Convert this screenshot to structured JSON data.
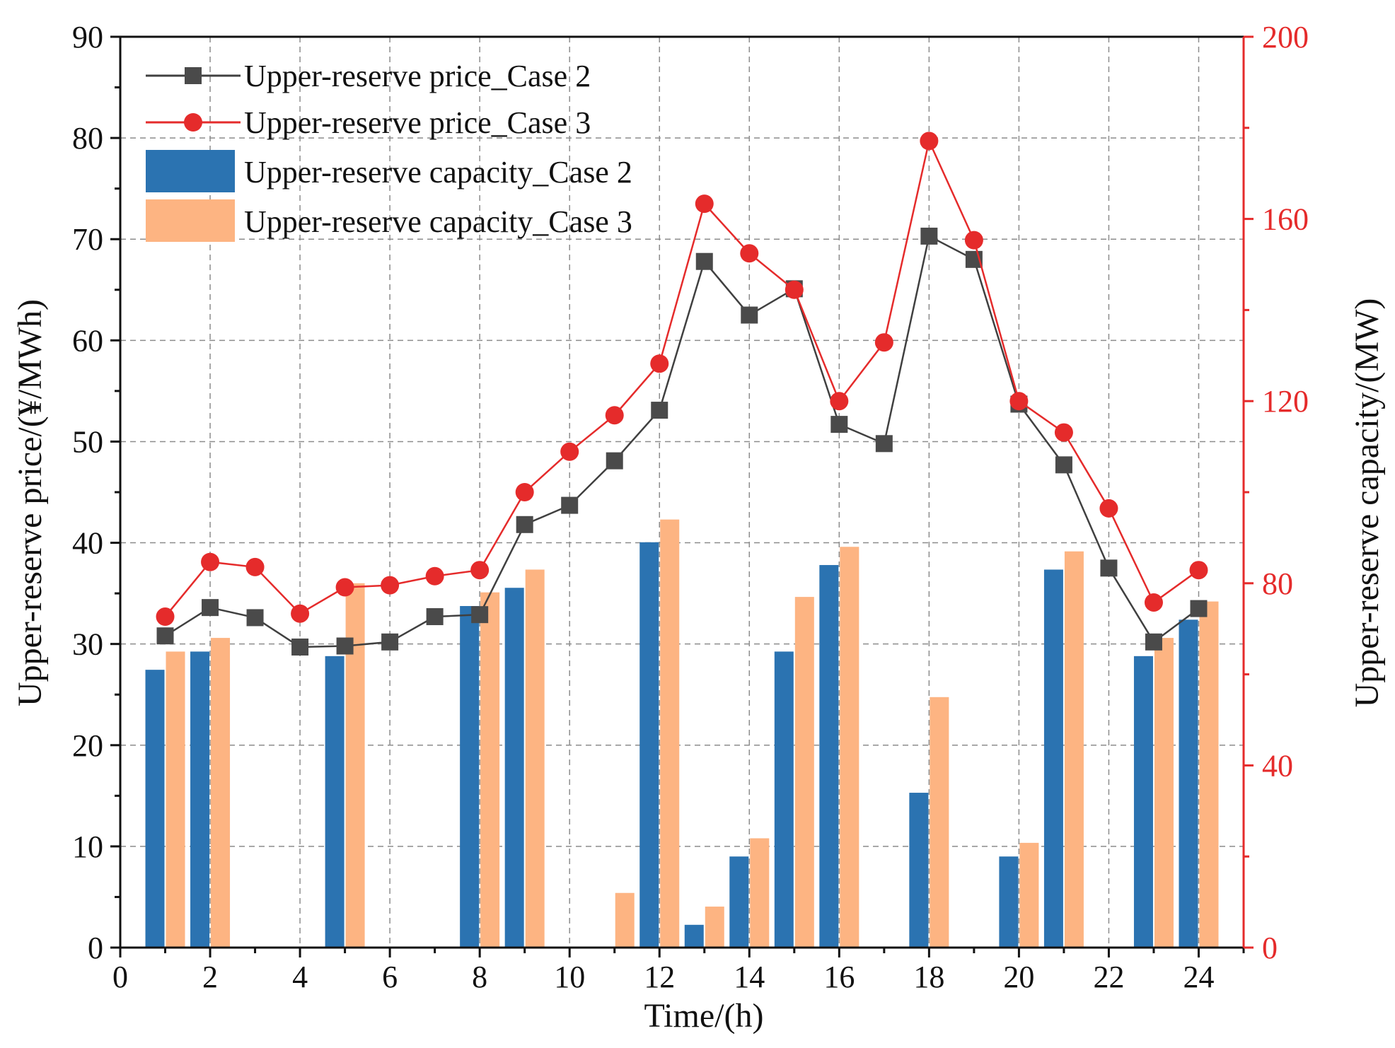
{
  "chart_data": {
    "type": "bar+line",
    "x": [
      1,
      2,
      3,
      4,
      5,
      6,
      7,
      8,
      9,
      10,
      11,
      12,
      13,
      14,
      15,
      16,
      17,
      18,
      19,
      20,
      21,
      22,
      23,
      24
    ],
    "xlabel": "Time/(h)",
    "xlim": [
      0,
      25
    ],
    "xticks": [
      "0",
      "2",
      "4",
      "6",
      "8",
      "10",
      "12",
      "14",
      "16",
      "18",
      "20",
      "22",
      "24"
    ],
    "ylabel_left": "Upper-reserve price/(¥/MWh)",
    "ylim_left": [
      0,
      90
    ],
    "yticks_left": [
      "0",
      "10",
      "20",
      "30",
      "40",
      "50",
      "60",
      "70",
      "80",
      "90"
    ],
    "ylabel_right": "Upper-reserve capacity/(MW)",
    "ylim_right": [
      0,
      200
    ],
    "yticks_right": [
      "0",
      "40",
      "80",
      "120",
      "160",
      "200"
    ],
    "grid": true,
    "legend_position": "top-left",
    "series": [
      {
        "name": "Upper-reserve price_Case 2",
        "kind": "line",
        "axis": "left",
        "marker": "square",
        "color": "#404040",
        "marker_color": "#4a4a4a",
        "values": [
          30.8,
          33.6,
          32.6,
          29.7,
          29.8,
          30.2,
          32.7,
          32.9,
          41.8,
          43.7,
          48.1,
          53.1,
          67.8,
          62.5,
          65.1,
          51.7,
          49.8,
          70.3,
          68.0,
          53.7,
          47.7,
          37.5,
          30.2,
          33.5
        ]
      },
      {
        "name": "Upper-reserve price_Case 3",
        "kind": "line",
        "axis": "left",
        "marker": "circle",
        "color": "#e52b2b",
        "marker_color": "#e52b2b",
        "values": [
          32.7,
          38.1,
          37.6,
          33.0,
          35.6,
          35.8,
          36.7,
          37.3,
          45.0,
          49.0,
          52.6,
          57.7,
          73.5,
          68.6,
          65.0,
          54.0,
          59.8,
          79.7,
          69.9,
          54.0,
          50.9,
          43.4,
          34.1,
          37.3
        ]
      },
      {
        "name": "Upper-reserve capacity_Case 2",
        "kind": "bar",
        "axis": "right",
        "color": "#2b73b1",
        "values": [
          61,
          65,
          0,
          0,
          64,
          0,
          0,
          75,
          79,
          0,
          0,
          89,
          5,
          20,
          65,
          84,
          0,
          34,
          0,
          20,
          83,
          0,
          64,
          72
        ]
      },
      {
        "name": "Upper-reserve capacity_Case 3",
        "kind": "bar",
        "axis": "right",
        "color": "#fdb482",
        "values": [
          65,
          68,
          0,
          0,
          80,
          0,
          0,
          78,
          83,
          0,
          12,
          94,
          9,
          24,
          77,
          88,
          0,
          55,
          0,
          23,
          87,
          0,
          68,
          76
        ]
      }
    ]
  }
}
